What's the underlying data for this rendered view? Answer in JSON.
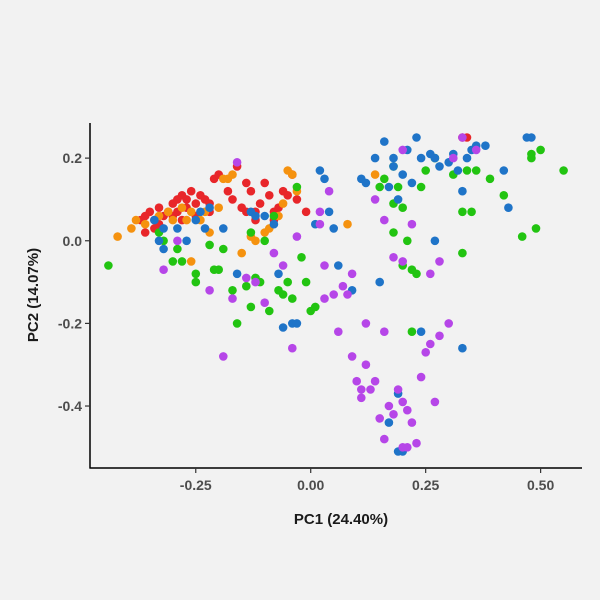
{
  "chart_data": {
    "type": "scatter",
    "title": "",
    "xlabel": "PC1 (24.40%)",
    "ylabel": "PC2 (14.07%)",
    "xlim": [
      -0.48,
      0.59
    ],
    "ylim": [
      -0.55,
      0.285
    ],
    "xticks": [
      -0.25,
      0.0,
      0.25,
      0.5
    ],
    "xtick_labels": [
      "-0.25",
      "0.00",
      "0.25",
      "0.50"
    ],
    "yticks": [
      -0.4,
      -0.2,
      0.0,
      0.2
    ],
    "ytick_labels": [
      "-0.4",
      "-0.2",
      "0.0",
      "0.2"
    ],
    "grid": false,
    "legend": "none",
    "background_color": "#f2f2f2",
    "series": [
      {
        "color": "#e8262a",
        "points": [
          [
            -0.36,
            0.06
          ],
          [
            -0.37,
            0.05
          ],
          [
            -0.35,
            0.07
          ],
          [
            -0.34,
            0.05
          ],
          [
            -0.33,
            0.08
          ],
          [
            -0.32,
            0.06
          ],
          [
            -0.31,
            0.07
          ],
          [
            -0.3,
            0.09
          ],
          [
            -0.29,
            0.1
          ],
          [
            -0.29,
            0.07
          ],
          [
            -0.28,
            0.11
          ],
          [
            -0.27,
            0.1
          ],
          [
            -0.26,
            0.12
          ],
          [
            -0.25,
            0.09
          ],
          [
            -0.24,
            0.11
          ],
          [
            -0.23,
            0.1
          ],
          [
            -0.27,
            0.08
          ],
          [
            -0.3,
            0.06
          ],
          [
            -0.33,
            0.04
          ],
          [
            -0.34,
            0.03
          ],
          [
            -0.36,
            0.02
          ],
          [
            -0.28,
            0.05
          ],
          [
            -0.25,
            0.06
          ],
          [
            -0.22,
            0.09
          ],
          [
            -0.21,
            0.15
          ],
          [
            -0.2,
            0.16
          ],
          [
            -0.18,
            0.12
          ],
          [
            -0.17,
            0.1
          ],
          [
            -0.16,
            0.18
          ],
          [
            -0.15,
            0.08
          ],
          [
            -0.14,
            0.14
          ],
          [
            -0.13,
            0.12
          ],
          [
            -0.12,
            0.07
          ],
          [
            -0.11,
            0.09
          ],
          [
            -0.1,
            0.14
          ],
          [
            -0.09,
            0.11
          ],
          [
            -0.08,
            0.07
          ],
          [
            -0.07,
            0.08
          ],
          [
            -0.06,
            0.12
          ],
          [
            -0.05,
            0.11
          ],
          [
            -0.04,
            0.16
          ],
          [
            -0.03,
            0.1
          ],
          [
            -0.12,
            0.05
          ],
          [
            -0.14,
            0.07
          ],
          [
            -0.08,
            0.05
          ],
          [
            -0.01,
            0.07
          ],
          [
            0.33,
            0.25
          ],
          [
            0.34,
            0.25
          ],
          [
            -0.22,
            0.07
          ]
        ]
      },
      {
        "color": "#f5920f",
        "points": [
          [
            -0.42,
            0.01
          ],
          [
            -0.39,
            0.03
          ],
          [
            -0.38,
            0.05
          ],
          [
            -0.33,
            0.06
          ],
          [
            -0.31,
            0.07
          ],
          [
            -0.3,
            0.05
          ],
          [
            -0.28,
            0.08
          ],
          [
            -0.27,
            0.05
          ],
          [
            -0.26,
            0.07
          ],
          [
            -0.24,
            0.05
          ],
          [
            -0.23,
            0.07
          ],
          [
            -0.2,
            0.08
          ],
          [
            -0.19,
            0.15
          ],
          [
            -0.18,
            0.15
          ],
          [
            -0.17,
            0.16
          ],
          [
            -0.12,
            0.0
          ],
          [
            -0.15,
            -0.03
          ],
          [
            -0.13,
            0.01
          ],
          [
            -0.1,
            0.02
          ],
          [
            -0.07,
            0.06
          ],
          [
            -0.06,
            0.09
          ],
          [
            -0.05,
            0.17
          ],
          [
            -0.04,
            0.16
          ],
          [
            -0.03,
            0.12
          ],
          [
            -0.22,
            0.02
          ],
          [
            -0.26,
            -0.05
          ],
          [
            0.08,
            0.04
          ],
          [
            0.14,
            0.16
          ],
          [
            -0.09,
            0.03
          ],
          [
            -0.36,
            0.04
          ]
        ]
      },
      {
        "color": "#22c411",
        "points": [
          [
            -0.44,
            -0.06
          ],
          [
            -0.33,
            0.02
          ],
          [
            -0.32,
            0.0
          ],
          [
            -0.29,
            -0.02
          ],
          [
            -0.28,
            -0.05
          ],
          [
            -0.25,
            -0.08
          ],
          [
            -0.25,
            -0.1
          ],
          [
            -0.22,
            -0.01
          ],
          [
            -0.2,
            -0.07
          ],
          [
            -0.19,
            -0.02
          ],
          [
            -0.17,
            -0.12
          ],
          [
            -0.16,
            -0.2
          ],
          [
            -0.14,
            -0.11
          ],
          [
            -0.13,
            0.02
          ],
          [
            -0.13,
            -0.16
          ],
          [
            -0.11,
            -0.1
          ],
          [
            -0.1,
            0.0
          ],
          [
            -0.09,
            -0.17
          ],
          [
            -0.08,
            0.06
          ],
          [
            -0.07,
            -0.12
          ],
          [
            -0.06,
            -0.13
          ],
          [
            -0.05,
            -0.1
          ],
          [
            -0.04,
            -0.14
          ],
          [
            -0.03,
            0.13
          ],
          [
            -0.02,
            -0.04
          ],
          [
            -0.01,
            -0.1
          ],
          [
            0.0,
            -0.17
          ],
          [
            0.01,
            -0.16
          ],
          [
            0.15,
            0.13
          ],
          [
            0.16,
            0.15
          ],
          [
            0.18,
            0.09
          ],
          [
            0.19,
            0.13
          ],
          [
            0.2,
            0.08
          ],
          [
            0.21,
            0.0
          ],
          [
            0.22,
            -0.22
          ],
          [
            0.23,
            -0.08
          ],
          [
            0.24,
            0.13
          ],
          [
            0.25,
            0.17
          ],
          [
            0.27,
            0.2
          ],
          [
            0.31,
            0.16
          ],
          [
            0.33,
            0.07
          ],
          [
            0.33,
            -0.03
          ],
          [
            0.34,
            0.17
          ],
          [
            0.35,
            0.07
          ],
          [
            0.39,
            0.15
          ],
          [
            0.42,
            0.11
          ],
          [
            0.46,
            0.01
          ],
          [
            0.48,
            0.21
          ],
          [
            0.48,
            0.2
          ],
          [
            0.49,
            0.03
          ],
          [
            0.5,
            0.22
          ],
          [
            0.55,
            0.17
          ],
          [
            0.18,
            0.02
          ],
          [
            0.2,
            -0.06
          ],
          [
            0.22,
            -0.07
          ],
          [
            -0.12,
            -0.09
          ],
          [
            0.36,
            0.17
          ],
          [
            -0.21,
            -0.07
          ],
          [
            0.18,
            0.18
          ],
          [
            -0.3,
            -0.05
          ]
        ]
      },
      {
        "color": "#1f74c8",
        "points": [
          [
            -0.34,
            0.05
          ],
          [
            -0.33,
            0.0
          ],
          [
            -0.32,
            0.03
          ],
          [
            -0.29,
            0.03
          ],
          [
            -0.27,
            0.0
          ],
          [
            -0.25,
            0.05
          ],
          [
            -0.24,
            0.07
          ],
          [
            -0.23,
            0.03
          ],
          [
            -0.22,
            0.08
          ],
          [
            -0.13,
            0.07
          ],
          [
            -0.12,
            0.06
          ],
          [
            -0.1,
            0.06
          ],
          [
            -0.08,
            0.04
          ],
          [
            -0.07,
            -0.08
          ],
          [
            -0.06,
            -0.21
          ],
          [
            -0.04,
            -0.2
          ],
          [
            -0.03,
            -0.2
          ],
          [
            0.01,
            0.04
          ],
          [
            0.02,
            0.17
          ],
          [
            0.03,
            0.15
          ],
          [
            0.04,
            0.07
          ],
          [
            0.05,
            0.03
          ],
          [
            0.06,
            -0.06
          ],
          [
            0.09,
            -0.12
          ],
          [
            0.11,
            0.15
          ],
          [
            0.12,
            0.14
          ],
          [
            0.14,
            0.2
          ],
          [
            0.16,
            0.24
          ],
          [
            0.17,
            0.13
          ],
          [
            0.18,
            0.18
          ],
          [
            0.19,
            0.1
          ],
          [
            0.2,
            0.16
          ],
          [
            0.21,
            0.22
          ],
          [
            0.22,
            0.14
          ],
          [
            0.23,
            0.25
          ],
          [
            0.24,
            0.2
          ],
          [
            0.26,
            0.21
          ],
          [
            0.27,
            0.2
          ],
          [
            0.28,
            0.18
          ],
          [
            0.3,
            0.19
          ],
          [
            0.31,
            0.21
          ],
          [
            0.32,
            0.17
          ],
          [
            0.33,
            0.12
          ],
          [
            0.34,
            0.2
          ],
          [
            0.35,
            0.22
          ],
          [
            0.36,
            0.23
          ],
          [
            0.38,
            0.23
          ],
          [
            0.42,
            0.17
          ],
          [
            0.43,
            0.08
          ],
          [
            0.47,
            0.25
          ],
          [
            0.48,
            0.25
          ],
          [
            0.27,
            0.0
          ],
          [
            0.24,
            -0.22
          ],
          [
            0.33,
            -0.26
          ],
          [
            0.19,
            -0.51
          ],
          [
            0.2,
            -0.51
          ],
          [
            0.19,
            -0.37
          ],
          [
            0.17,
            -0.44
          ],
          [
            -0.32,
            -0.02
          ],
          [
            -0.16,
            -0.08
          ],
          [
            0.18,
            0.2
          ],
          [
            -0.19,
            0.03
          ],
          [
            0.15,
            -0.1
          ]
        ]
      },
      {
        "color": "#b646e8",
        "points": [
          [
            -0.32,
            -0.07
          ],
          [
            -0.29,
            0.0
          ],
          [
            -0.22,
            -0.12
          ],
          [
            -0.19,
            -0.28
          ],
          [
            -0.17,
            -0.14
          ],
          [
            -0.16,
            0.19
          ],
          [
            -0.14,
            -0.09
          ],
          [
            -0.12,
            -0.1
          ],
          [
            -0.1,
            -0.15
          ],
          [
            -0.08,
            -0.03
          ],
          [
            -0.06,
            -0.06
          ],
          [
            -0.04,
            -0.26
          ],
          [
            -0.03,
            0.01
          ],
          [
            0.02,
            0.07
          ],
          [
            0.03,
            -0.06
          ],
          [
            0.04,
            0.12
          ],
          [
            0.05,
            -0.13
          ],
          [
            0.06,
            -0.22
          ],
          [
            0.08,
            -0.13
          ],
          [
            0.09,
            -0.08
          ],
          [
            0.1,
            -0.34
          ],
          [
            0.11,
            -0.38
          ],
          [
            0.12,
            -0.3
          ],
          [
            0.13,
            -0.36
          ],
          [
            0.14,
            -0.34
          ],
          [
            0.15,
            -0.43
          ],
          [
            0.16,
            -0.22
          ],
          [
            0.17,
            -0.4
          ],
          [
            0.18,
            -0.42
          ],
          [
            0.19,
            -0.36
          ],
          [
            0.2,
            -0.39
          ],
          [
            0.21,
            -0.41
          ],
          [
            0.2,
            -0.5
          ],
          [
            0.21,
            -0.5
          ],
          [
            0.22,
            -0.44
          ],
          [
            0.23,
            -0.49
          ],
          [
            0.24,
            -0.33
          ],
          [
            0.25,
            -0.27
          ],
          [
            0.26,
            -0.25
          ],
          [
            0.27,
            -0.39
          ],
          [
            0.28,
            -0.23
          ],
          [
            0.16,
            0.05
          ],
          [
            0.18,
            -0.04
          ],
          [
            0.2,
            -0.05
          ],
          [
            0.22,
            0.04
          ],
          [
            0.26,
            -0.08
          ],
          [
            0.28,
            -0.05
          ],
          [
            0.3,
            -0.2
          ],
          [
            0.33,
            0.25
          ],
          [
            0.31,
            0.2
          ],
          [
            0.36,
            0.22
          ],
          [
            0.2,
            0.22
          ],
          [
            0.14,
            0.1
          ],
          [
            0.02,
            0.04
          ],
          [
            0.16,
            -0.48
          ],
          [
            0.11,
            -0.36
          ],
          [
            0.03,
            -0.14
          ],
          [
            0.12,
            -0.2
          ],
          [
            0.07,
            -0.11
          ],
          [
            0.09,
            -0.28
          ]
        ]
      }
    ]
  }
}
